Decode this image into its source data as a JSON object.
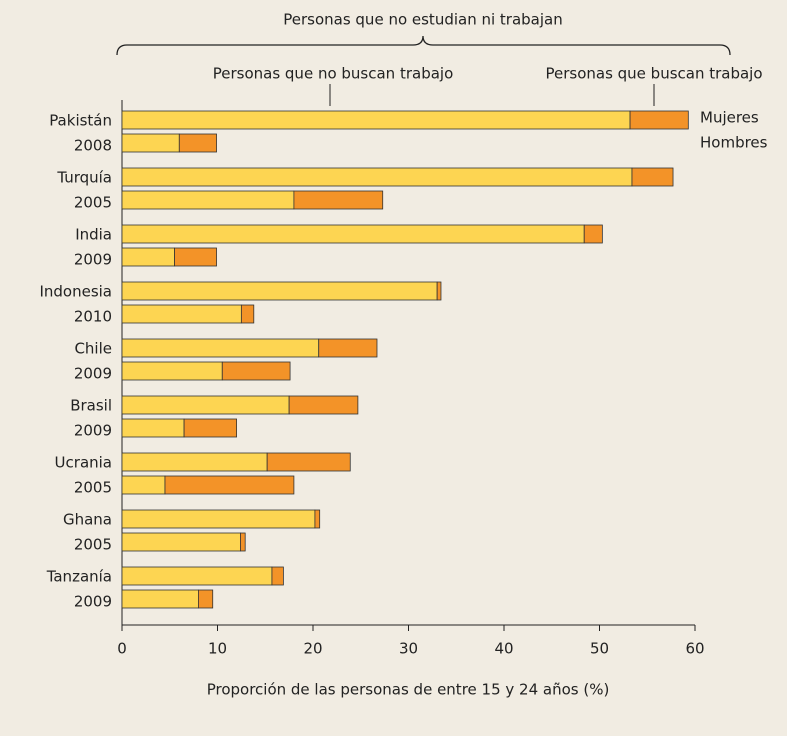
{
  "chart_data": {
    "type": "bar",
    "orientation": "horizontal",
    "stacked": true,
    "title": "Personas que no estudian ni trabajan",
    "xlabel": "Proporción de las personas de entre 15 y 24 años (%)",
    "categories": [
      [
        "Pakistán",
        "2008"
      ],
      [
        "Turquía",
        "2005"
      ],
      [
        "India",
        "2009"
      ],
      [
        "Indonesia",
        "2010"
      ],
      [
        "Chile",
        "2009"
      ],
      [
        "Brasil",
        "2009"
      ],
      [
        "Ucrania",
        "2005"
      ],
      [
        "Ghana",
        "2005"
      ],
      [
        "Tanzanía",
        "2009"
      ]
    ],
    "subgroups": [
      "Mujeres",
      "Hombres"
    ],
    "series": [
      {
        "name": "Personas que no buscan trabajo",
        "color": "#fdd552",
        "values": [
          [
            53.2,
            6.0
          ],
          [
            53.4,
            18.0
          ],
          [
            48.4,
            5.5
          ],
          [
            33.0,
            12.5
          ],
          [
            20.6,
            10.5
          ],
          [
            17.5,
            6.5
          ],
          [
            15.2,
            4.5
          ],
          [
            20.2,
            12.4
          ],
          [
            15.7,
            8.0
          ]
        ]
      },
      {
        "name": "Personas que buscan trabajo",
        "color": "#f39328",
        "values": [
          [
            6.1,
            3.9
          ],
          [
            4.3,
            9.3
          ],
          [
            1.9,
            4.4
          ],
          [
            0.4,
            1.3
          ],
          [
            6.1,
            7.1
          ],
          [
            7.2,
            5.5
          ],
          [
            8.7,
            13.5
          ],
          [
            0.5,
            0.5
          ],
          [
            1.2,
            1.5
          ]
        ]
      }
    ],
    "xlim": [
      0,
      60
    ],
    "xticks": [
      0,
      10,
      20,
      30,
      40,
      50,
      60
    ]
  }
}
